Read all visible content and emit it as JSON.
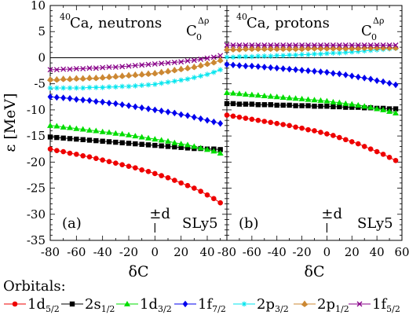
{
  "chart_data": {
    "type": "line",
    "ylabel": "ε [MeV]",
    "xlabel": "δC",
    "grid": false,
    "legend_title": "Orbitals:",
    "legend_placement": "bottom",
    "panels": [
      {
        "label": "(a)",
        "nucleus_mass": "40",
        "nucleus_text": "Ca, neutrons",
        "coupling_base": "C",
        "coupling_sub": "0",
        "coupling_sup": "Δρ",
        "force": "SLy5",
        "marker_symbol": "±d",
        "marker_x": 0,
        "xlim": [
          -80,
          55
        ],
        "xticks": [
          -80,
          -60,
          -40,
          -20,
          0,
          20,
          40
        ],
        "ylim": [
          -35,
          10
        ],
        "yticks": [
          10,
          5,
          0,
          -5,
          -10,
          -15,
          -20,
          -25,
          -30,
          -35
        ],
        "x": [
          -80,
          -75,
          -70,
          -65,
          -60,
          -55,
          -50,
          -45,
          -40,
          -35,
          -30,
          -25,
          -20,
          -15,
          -10,
          -5,
          0,
          5,
          10,
          15,
          20,
          25,
          30,
          35,
          40,
          45,
          50
        ],
        "series": [
          {
            "key": "1d52",
            "values": [
              -17.5,
              -17.8,
              -18.0,
              -18.3,
              -18.5,
              -18.8,
              -19.0,
              -19.3,
              -19.6,
              -19.9,
              -20.2,
              -20.5,
              -20.8,
              -21.1,
              -21.5,
              -21.8,
              -22.2,
              -22.6,
              -23.0,
              -23.5,
              -24.0,
              -24.5,
              -25.0,
              -25.6,
              -26.3,
              -27.0,
              -27.8
            ]
          },
          {
            "key": "2s12",
            "values": [
              -15.2,
              -15.3,
              -15.4,
              -15.5,
              -15.6,
              -15.7,
              -15.8,
              -15.9,
              -16.0,
              -16.1,
              -16.2,
              -16.3,
              -16.4,
              -16.5,
              -16.6,
              -16.7,
              -16.8,
              -16.9,
              -17.0,
              -17.1,
              -17.2,
              -17.3,
              -17.4,
              -17.4,
              -17.5,
              -17.5,
              -17.6
            ]
          },
          {
            "key": "1d32",
            "values": [
              -13.0,
              -13.1,
              -13.3,
              -13.4,
              -13.6,
              -13.7,
              -13.9,
              -14.0,
              -14.2,
              -14.3,
              -14.5,
              -14.6,
              -14.8,
              -15.0,
              -15.2,
              -15.4,
              -15.6,
              -15.8,
              -16.0,
              -16.3,
              -16.5,
              -16.7,
              -17.0,
              -17.3,
              -17.6,
              -17.9,
              -18.3
            ]
          },
          {
            "key": "1f72",
            "values": [
              -7.5,
              -7.6,
              -7.7,
              -7.8,
              -8.0,
              -8.1,
              -8.2,
              -8.4,
              -8.5,
              -8.7,
              -8.8,
              -9.0,
              -9.2,
              -9.4,
              -9.6,
              -9.8,
              -10.0,
              -10.2,
              -10.4,
              -10.6,
              -10.9,
              -11.1,
              -11.4,
              -11.7,
              -12.0,
              -12.3,
              -12.6
            ]
          },
          {
            "key": "2p32",
            "values": [
              -5.8,
              -5.8,
              -5.8,
              -5.8,
              -5.8,
              -5.8,
              -5.7,
              -5.7,
              -5.7,
              -5.6,
              -5.6,
              -5.5,
              -5.5,
              -5.4,
              -5.3,
              -5.2,
              -5.1,
              -4.9,
              -4.7,
              -4.5,
              -4.3,
              -4.1,
              -3.8,
              -3.5,
              -3.2,
              -2.8,
              -2.3
            ]
          },
          {
            "key": "2p12",
            "values": [
              -4.2,
              -4.2,
              -4.1,
              -4.1,
              -4.0,
              -4.0,
              -3.9,
              -3.9,
              -3.8,
              -3.7,
              -3.6,
              -3.5,
              -3.4,
              -3.3,
              -3.2,
              -3.1,
              -3.0,
              -2.8,
              -2.6,
              -2.4,
              -2.2,
              -2.0,
              -1.8,
              -1.5,
              -1.2,
              -0.9,
              -0.5
            ]
          },
          {
            "key": "1f52",
            "values": [
              -2.3,
              -2.3,
              -2.2,
              -2.2,
              -2.1,
              -2.1,
              -2.0,
              -2.0,
              -1.9,
              -1.8,
              -1.8,
              -1.7,
              -1.6,
              -1.5,
              -1.4,
              -1.3,
              -1.2,
              -1.1,
              -1.0,
              -0.9,
              -0.8,
              -0.6,
              -0.5,
              -0.3,
              -0.1,
              0.1,
              0.4
            ]
          }
        ]
      },
      {
        "label": "(b)",
        "nucleus_mass": "40",
        "nucleus_text": "Ca, protons",
        "coupling_base": "C",
        "coupling_sub": "0",
        "coupling_sup": "Δρ",
        "force": "SLy5",
        "marker_symbol": "±d",
        "marker_x": 0,
        "xlim": [
          -80,
          60
        ],
        "xticks": [
          -80,
          -60,
          -40,
          -20,
          0,
          20,
          40,
          60
        ],
        "ylim": [
          -35,
          10
        ],
        "yticks": [
          10,
          5,
          0,
          -5,
          -10,
          -15,
          -20,
          -25,
          -30,
          -35
        ],
        "x": [
          -80,
          -75,
          -70,
          -65,
          -60,
          -55,
          -50,
          -45,
          -40,
          -35,
          -30,
          -25,
          -20,
          -15,
          -10,
          -5,
          0,
          5,
          10,
          15,
          20,
          25,
          30,
          35,
          40,
          45,
          50,
          55
        ],
        "series": [
          {
            "key": "1d52",
            "values": [
              -11.0,
              -11.2,
              -11.4,
              -11.6,
              -11.8,
              -12.0,
              -12.2,
              -12.4,
              -12.6,
              -12.8,
              -13.0,
              -13.3,
              -13.5,
              -13.8,
              -14.0,
              -14.3,
              -14.6,
              -14.9,
              -15.3,
              -15.7,
              -16.1,
              -16.5,
              -17.0,
              -17.5,
              -18.0,
              -18.5,
              -19.1,
              -19.7
            ]
          },
          {
            "key": "2s12",
            "values": [
              -8.8,
              -8.8,
              -8.9,
              -8.9,
              -8.9,
              -9.0,
              -9.0,
              -9.0,
              -9.1,
              -9.1,
              -9.1,
              -9.2,
              -9.2,
              -9.2,
              -9.3,
              -9.3,
              -9.3,
              -9.4,
              -9.4,
              -9.5,
              -9.5,
              -9.5,
              -9.6,
              -9.6,
              -9.7,
              -9.7,
              -9.8,
              -9.8
            ]
          },
          {
            "key": "1d32",
            "values": [
              -6.7,
              -6.8,
              -6.9,
              -7.0,
              -7.1,
              -7.2,
              -7.3,
              -7.4,
              -7.5,
              -7.6,
              -7.7,
              -7.8,
              -7.9,
              -8.0,
              -8.1,
              -8.2,
              -8.3,
              -8.5,
              -8.6,
              -8.8,
              -8.9,
              -9.1,
              -9.3,
              -9.5,
              -9.8,
              -10.0,
              -10.3,
              -10.6
            ]
          },
          {
            "key": "1f72",
            "values": [
              -1.3,
              -1.4,
              -1.5,
              -1.6,
              -1.6,
              -1.7,
              -1.8,
              -1.9,
              -2.0,
              -2.1,
              -2.2,
              -2.3,
              -2.4,
              -2.5,
              -2.6,
              -2.7,
              -2.8,
              -3.0,
              -3.1,
              -3.3,
              -3.5,
              -3.7,
              -3.9,
              -4.1,
              -4.4,
              -4.6,
              -4.9,
              -5.2
            ]
          },
          {
            "key": "2p32",
            "values": [
              0.1,
              0.1,
              0.2,
              0.2,
              0.2,
              0.3,
              0.3,
              0.3,
              0.4,
              0.4,
              0.5,
              0.5,
              0.6,
              0.6,
              0.7,
              0.7,
              0.8,
              0.9,
              0.9,
              1.0,
              1.1,
              1.2,
              1.3,
              1.4,
              1.5,
              1.6,
              1.7,
              1.8
            ]
          },
          {
            "key": "2p12",
            "values": [
              1.6,
              1.6,
              1.6,
              1.7,
              1.7,
              1.7,
              1.7,
              1.7,
              1.7,
              1.7,
              1.7,
              1.7,
              1.7,
              1.8,
              1.8,
              1.8,
              1.8,
              1.8,
              1.8,
              1.8,
              1.8,
              1.8,
              1.9,
              1.9,
              1.9,
              1.9,
              1.9,
              1.9
            ]
          },
          {
            "key": "1f52",
            "values": [
              2.4,
              2.4,
              2.4,
              2.4,
              2.4,
              2.4,
              2.4,
              2.4,
              2.4,
              2.4,
              2.4,
              2.4,
              2.4,
              2.4,
              2.4,
              2.4,
              2.4,
              2.4,
              2.4,
              2.4,
              2.4,
              2.4,
              2.4,
              2.4,
              2.4,
              2.4,
              2.4,
              2.4
            ]
          }
        ]
      }
    ],
    "legend": [
      {
        "key": "1d52",
        "label_main": "1d",
        "label_sub": "5/2",
        "color": "#ee0000",
        "marker": "circle"
      },
      {
        "key": "2s12",
        "label_main": "2s",
        "label_sub": "1/2",
        "color": "#000000",
        "marker": "square"
      },
      {
        "key": "1d32",
        "label_main": "1d",
        "label_sub": "3/2",
        "color": "#00dd00",
        "marker": "triangle"
      },
      {
        "key": "1f72",
        "label_main": "1f",
        "label_sub": "7/2",
        "color": "#0000ee",
        "marker": "diamond"
      },
      {
        "key": "2p32",
        "label_main": "2p",
        "label_sub": "3/2",
        "color": "#00e5ee",
        "marker": "star"
      },
      {
        "key": "2p12",
        "label_main": "2p",
        "label_sub": "1/2",
        "color": "#cc8833",
        "marker": "triangle-diamond"
      },
      {
        "key": "1f52",
        "label_main": "1f",
        "label_sub": "5/2",
        "color": "#880088",
        "marker": "cross"
      }
    ]
  }
}
